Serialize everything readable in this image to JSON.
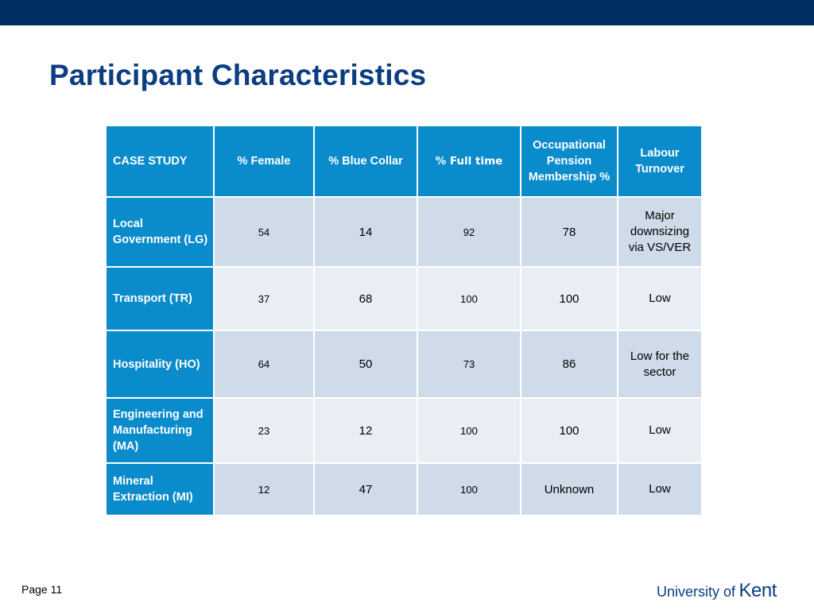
{
  "page": {
    "title": "Participant Characteristics",
    "page_label": "Page 11",
    "logo_text_prefix": "University of",
    "logo_text_brand": "Kent"
  },
  "table": {
    "headers": [
      "CASE STUDY",
      "% Female",
      "% Blue Collar",
      "% Full time",
      "Occupational Pension Membership %",
      "Labour Turnover"
    ],
    "rows": [
      {
        "case": "Local Government (LG)",
        "female": "54",
        "blue_collar": "14",
        "full_time": "92",
        "pension": "78",
        "turnover": "Major downsizing via VS/VER"
      },
      {
        "case": "Transport (TR)",
        "female": "37",
        "blue_collar": "68",
        "full_time": "100",
        "pension": "100",
        "turnover": "Low"
      },
      {
        "case": "Hospitality (HO)",
        "female": "64",
        "blue_collar": "50",
        "full_time": "73",
        "pension": "86",
        "turnover": "Low for the sector"
      },
      {
        "case": "Engineering and Manufacturing (MA)",
        "female": "23",
        "blue_collar": "12",
        "full_time": "100",
        "pension": "100",
        "turnover": "Low"
      },
      {
        "case": "Mineral Extraction (MI)",
        "female": "12",
        "blue_collar": "47",
        "full_time": "100",
        "pension": "Unknown",
        "turnover": "Low"
      }
    ]
  },
  "colors": {
    "top_bar": "#002d62",
    "title": "#0a3d82",
    "header_fill": "#0a8bcb",
    "row_dark": "#cfdbe8",
    "row_light": "#e9eef5"
  }
}
